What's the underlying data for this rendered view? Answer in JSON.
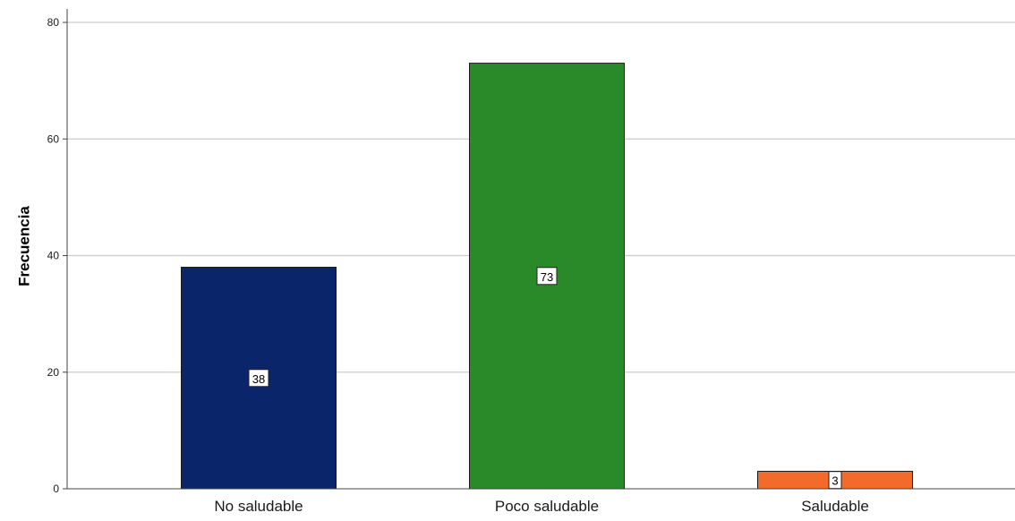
{
  "chart_data": {
    "type": "bar",
    "title": "",
    "xlabel": "",
    "ylabel": "Frecuencia",
    "ylim": [
      0,
      80
    ],
    "yticks": [
      0,
      20,
      40,
      60,
      80
    ],
    "grid": true,
    "categories": [
      "No saludable",
      "Poco saludable",
      "Saludable"
    ],
    "values": [
      38,
      73,
      3
    ],
    "data_labels": [
      "38",
      "73",
      "3"
    ],
    "colors": [
      "#0a2569",
      "#2a8a2a",
      "#f26b2b"
    ],
    "edge_color": "#1a1a1a",
    "grid_color": "#cccccc"
  }
}
